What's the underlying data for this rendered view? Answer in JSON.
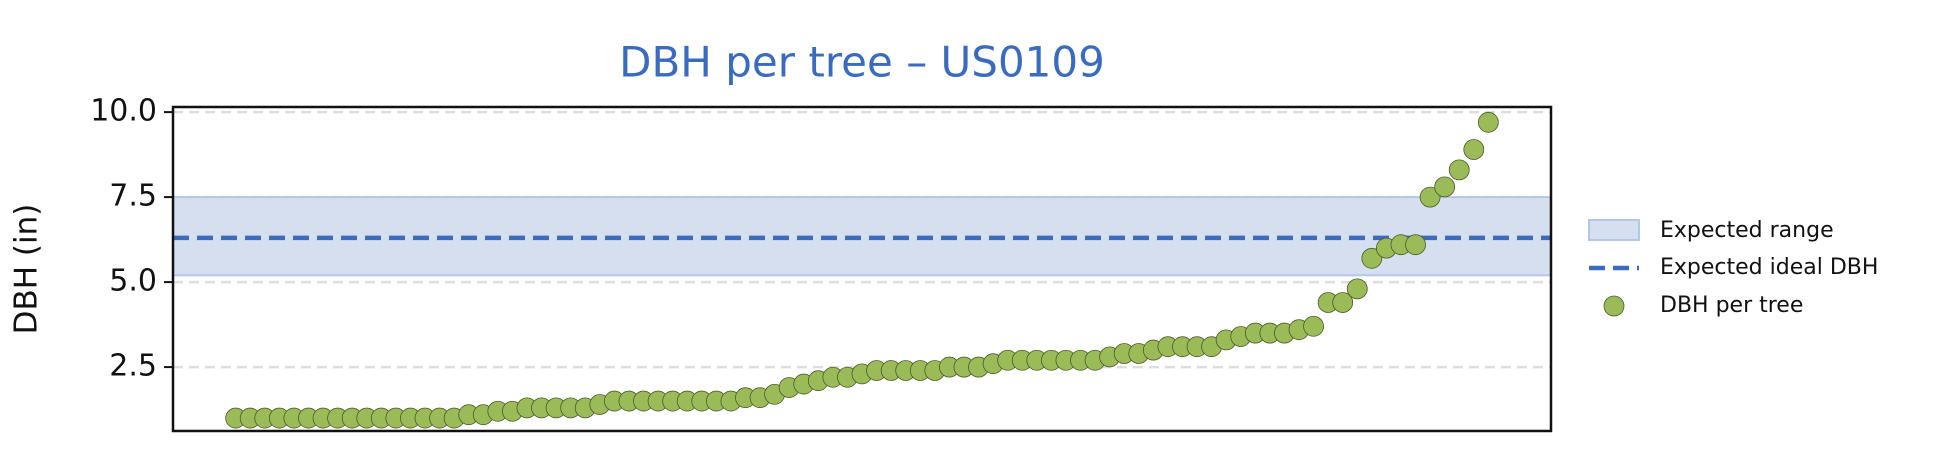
{
  "chart_data": {
    "type": "scatter",
    "title": "DBH per tree – US0109",
    "y_label": "DBH (in)",
    "x": [
      0,
      1,
      2,
      3,
      4,
      5,
      6,
      7,
      8,
      9,
      10,
      11,
      12,
      13,
      14,
      15,
      16,
      17,
      18,
      19,
      20,
      21,
      22,
      23,
      24,
      25,
      26,
      27,
      28,
      29,
      30,
      31,
      32,
      33,
      34,
      35,
      36,
      37,
      38,
      39,
      40,
      41,
      42,
      43,
      44,
      45,
      46,
      47,
      48,
      49,
      50,
      51,
      52,
      53,
      54,
      55,
      56,
      57,
      58,
      59,
      60,
      61,
      62,
      63,
      64,
      65,
      66,
      67,
      68,
      69,
      70,
      71,
      72,
      73,
      74,
      75,
      76,
      77,
      78,
      79,
      80,
      81,
      82,
      83,
      84,
      85,
      86
    ],
    "series": [
      {
        "name": "DBH per tree",
        "color": "#9bbb59",
        "values": [
          1.0,
          1.0,
          1.0,
          1.0,
          1.0,
          1.0,
          1.0,
          1.0,
          1.0,
          1.0,
          1.0,
          1.0,
          1.0,
          1.0,
          1.0,
          1.0,
          1.1,
          1.1,
          1.2,
          1.2,
          1.3,
          1.3,
          1.3,
          1.3,
          1.3,
          1.4,
          1.5,
          1.5,
          1.5,
          1.5,
          1.5,
          1.5,
          1.5,
          1.5,
          1.5,
          1.6,
          1.6,
          1.7,
          1.9,
          2.0,
          2.1,
          2.2,
          2.2,
          2.3,
          2.4,
          2.4,
          2.4,
          2.4,
          2.4,
          2.5,
          2.5,
          2.5,
          2.6,
          2.7,
          2.7,
          2.7,
          2.7,
          2.7,
          2.7,
          2.7,
          2.8,
          2.9,
          2.9,
          3.0,
          3.1,
          3.1,
          3.1,
          3.1,
          3.3,
          3.4,
          3.5,
          3.5,
          3.5,
          3.6,
          3.7,
          4.4,
          4.4,
          4.8,
          5.7,
          6.0,
          6.1,
          6.1,
          7.5,
          7.8,
          8.3,
          8.9,
          9.7
        ]
      }
    ],
    "expected_range": {
      "name": "Expected range",
      "low": 5.2,
      "high": 7.5,
      "color": "#d6dff0"
    },
    "expected_ideal": {
      "name": "Expected ideal DBH",
      "value": 6.3,
      "color": "#3a6bbf"
    },
    "xlim": [
      -4.3,
      90.3
    ],
    "ylim": [
      0.62,
      10.15
    ],
    "yticks": [
      2.5,
      {
        "value": 5,
        "label": "5.0"
      },
      7.5,
      {
        "value": 10,
        "label": "10.0"
      }
    ],
    "grid": true,
    "legend": "right"
  }
}
